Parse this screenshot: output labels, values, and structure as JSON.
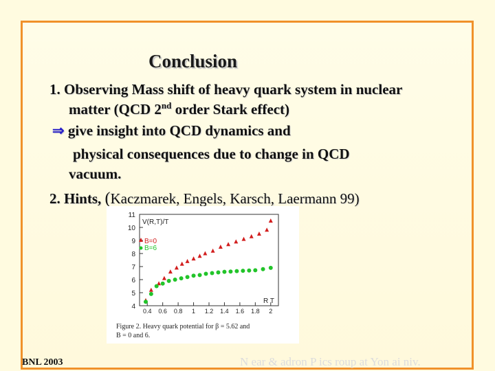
{
  "slide": {
    "title": "Conclusion",
    "item1_line1": "1. Observing Mass shift of heavy quark system in nuclear",
    "item1_line2a": "matter (QCD 2",
    "item1_line2_sup": "nd",
    "item1_line2b": " order Stark effect)",
    "arrow": "⇒",
    "item1_line3": " give insight into QCD dynamics and",
    "item1_line4": "physical consequences due to change in  QCD",
    "item1_line5": "vacuum.",
    "item2_label": "2. Hints, ",
    "item2_paren": "(",
    "item2_citation": "Kaczmarek, Engels, Karsch, Laermann 99)"
  },
  "footer": {
    "left": "BNL 2003",
    "right": "N   ear &   adron P    ics   roup at Yon ai   niv."
  },
  "chart_data": {
    "type": "scatter",
    "ylabel": "V(R,T)/T",
    "xlabel": "R T",
    "x_ticks": [
      "0.4",
      "0.6",
      "0.8",
      "1",
      "1.2",
      "1.4",
      "1.6",
      "1.8",
      "2"
    ],
    "y_ticks": [
      "4",
      "5",
      "6",
      "7",
      "8",
      "9",
      "10",
      "11"
    ],
    "xlim": [
      0.3,
      2.1
    ],
    "ylim": [
      4,
      11
    ],
    "series": [
      {
        "name": "B=0",
        "color": "#d21e1e",
        "marker": "triangle",
        "x": [
          0.38,
          0.45,
          0.55,
          0.62,
          0.7,
          0.78,
          0.85,
          0.92,
          1.0,
          1.08,
          1.15,
          1.25,
          1.35,
          1.45,
          1.55,
          1.65,
          1.75,
          1.85,
          1.95,
          2.0
        ],
        "y": [
          4.4,
          5.2,
          5.7,
          6.1,
          6.6,
          6.9,
          7.2,
          7.4,
          7.6,
          7.8,
          8.0,
          8.2,
          8.5,
          8.7,
          8.9,
          9.1,
          9.3,
          9.5,
          9.8,
          10.5
        ]
      },
      {
        "name": "B=6",
        "color": "#22c42a",
        "marker": "circle",
        "x": [
          0.38,
          0.45,
          0.52,
          0.6,
          0.68,
          0.76,
          0.84,
          0.92,
          1.0,
          1.08,
          1.16,
          1.24,
          1.32,
          1.4,
          1.48,
          1.56,
          1.64,
          1.72,
          1.8,
          1.9,
          2.0
        ],
        "y": [
          4.3,
          4.9,
          5.5,
          5.7,
          5.9,
          6.0,
          6.1,
          6.2,
          6.3,
          6.35,
          6.45,
          6.5,
          6.55,
          6.6,
          6.62,
          6.65,
          6.68,
          6.7,
          6.72,
          6.8,
          6.9
        ]
      }
    ]
  },
  "figure": {
    "caption_line1": "Figure 2.  Heavy quark potential for β = 5.62 and",
    "caption_line2": "B = 0 and 6."
  }
}
